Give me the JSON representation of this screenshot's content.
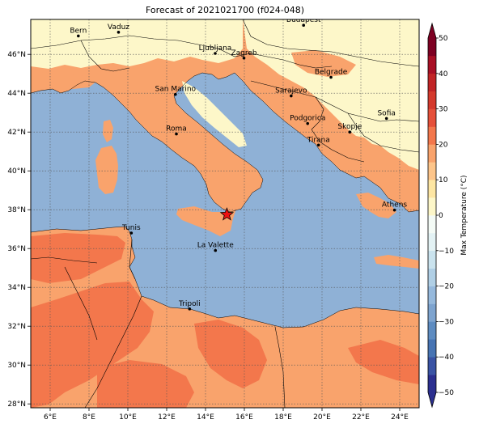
{
  "title": "Forecast of 2021021700 (f024-048)",
  "map": {
    "lon_range": [
      5,
      25
    ],
    "lat_range": [
      27.8,
      47.8
    ],
    "lon_ticks": [
      6,
      8,
      10,
      12,
      14,
      16,
      18,
      20,
      22,
      24
    ],
    "lat_ticks": [
      28,
      30,
      32,
      34,
      36,
      38,
      40,
      42,
      44,
      46
    ],
    "lon_tick_labels": [
      "6°E",
      "8°E",
      "10°E",
      "12°E",
      "14°E",
      "16°E",
      "18°E",
      "20°E",
      "22°E",
      "24°E"
    ],
    "lat_tick_labels": [
      "28°N",
      "30°N",
      "32°N",
      "34°N",
      "36°N",
      "38°N",
      "40°N",
      "42°N",
      "44°N",
      "46°N"
    ],
    "grid": true,
    "sea_color": "#8fb1d6",
    "marker": {
      "name": "star-marker",
      "lon": 15.1,
      "lat": 37.75,
      "color": "#ee1111"
    },
    "cities": [
      {
        "name": "Budapest",
        "lon": 19.05,
        "lat": 47.5
      },
      {
        "name": "Bern",
        "lon": 7.45,
        "lat": 46.95
      },
      {
        "name": "Vaduz",
        "lon": 9.52,
        "lat": 47.14
      },
      {
        "name": "Ljubljana",
        "lon": 14.5,
        "lat": 46.05
      },
      {
        "name": "Zagreb",
        "lon": 15.98,
        "lat": 45.81
      },
      {
        "name": "Belgrade",
        "lon": 20.46,
        "lat": 44.82
      },
      {
        "name": "San Marino",
        "lon": 12.45,
        "lat": 43.94
      },
      {
        "name": "Sarajevo",
        "lon": 18.41,
        "lat": 43.86
      },
      {
        "name": "Sofia",
        "lon": 23.32,
        "lat": 42.7
      },
      {
        "name": "Podgorica",
        "lon": 19.26,
        "lat": 42.44
      },
      {
        "name": "Skopje",
        "lon": 21.43,
        "lat": 42.0
      },
      {
        "name": "Roma",
        "lon": 12.5,
        "lat": 41.9
      },
      {
        "name": "Tirana",
        "lon": 19.82,
        "lat": 41.33
      },
      {
        "name": "Athens",
        "lon": 23.73,
        "lat": 37.98
      },
      {
        "name": "Tunis",
        "lon": 10.18,
        "lat": 36.8
      },
      {
        "name": "La Valette",
        "lon": 14.51,
        "lat": 35.9
      },
      {
        "name": "Tripoli",
        "lon": 13.18,
        "lat": 32.89
      }
    ]
  },
  "colorbar": {
    "label": "Max Temperature (°C)",
    "ticks": [
      "50",
      "40",
      "30",
      "20",
      "10",
      "0",
      "−10",
      "−20",
      "−30",
      "−40",
      "−50"
    ],
    "levels": [
      -50,
      -45,
      -40,
      -35,
      -30,
      -25,
      -20,
      -15,
      -10,
      -5,
      0,
      5,
      10,
      15,
      20,
      25,
      30,
      35,
      40,
      45,
      50
    ],
    "colors": [
      "#2b2f8f",
      "#3a53a4",
      "#4774b3",
      "#5e8cc1",
      "#7ea4cf",
      "#96b9dc",
      "#b0cfe5",
      "#cae3ee",
      "#e3f2f4",
      "#f4fbf6",
      "#fdf7c9",
      "#fde6a3",
      "#fdc58a",
      "#f9a36c",
      "#f3774c",
      "#e5503a",
      "#d43a2d",
      "#c12426",
      "#a80f25",
      "#7d0022"
    ]
  }
}
